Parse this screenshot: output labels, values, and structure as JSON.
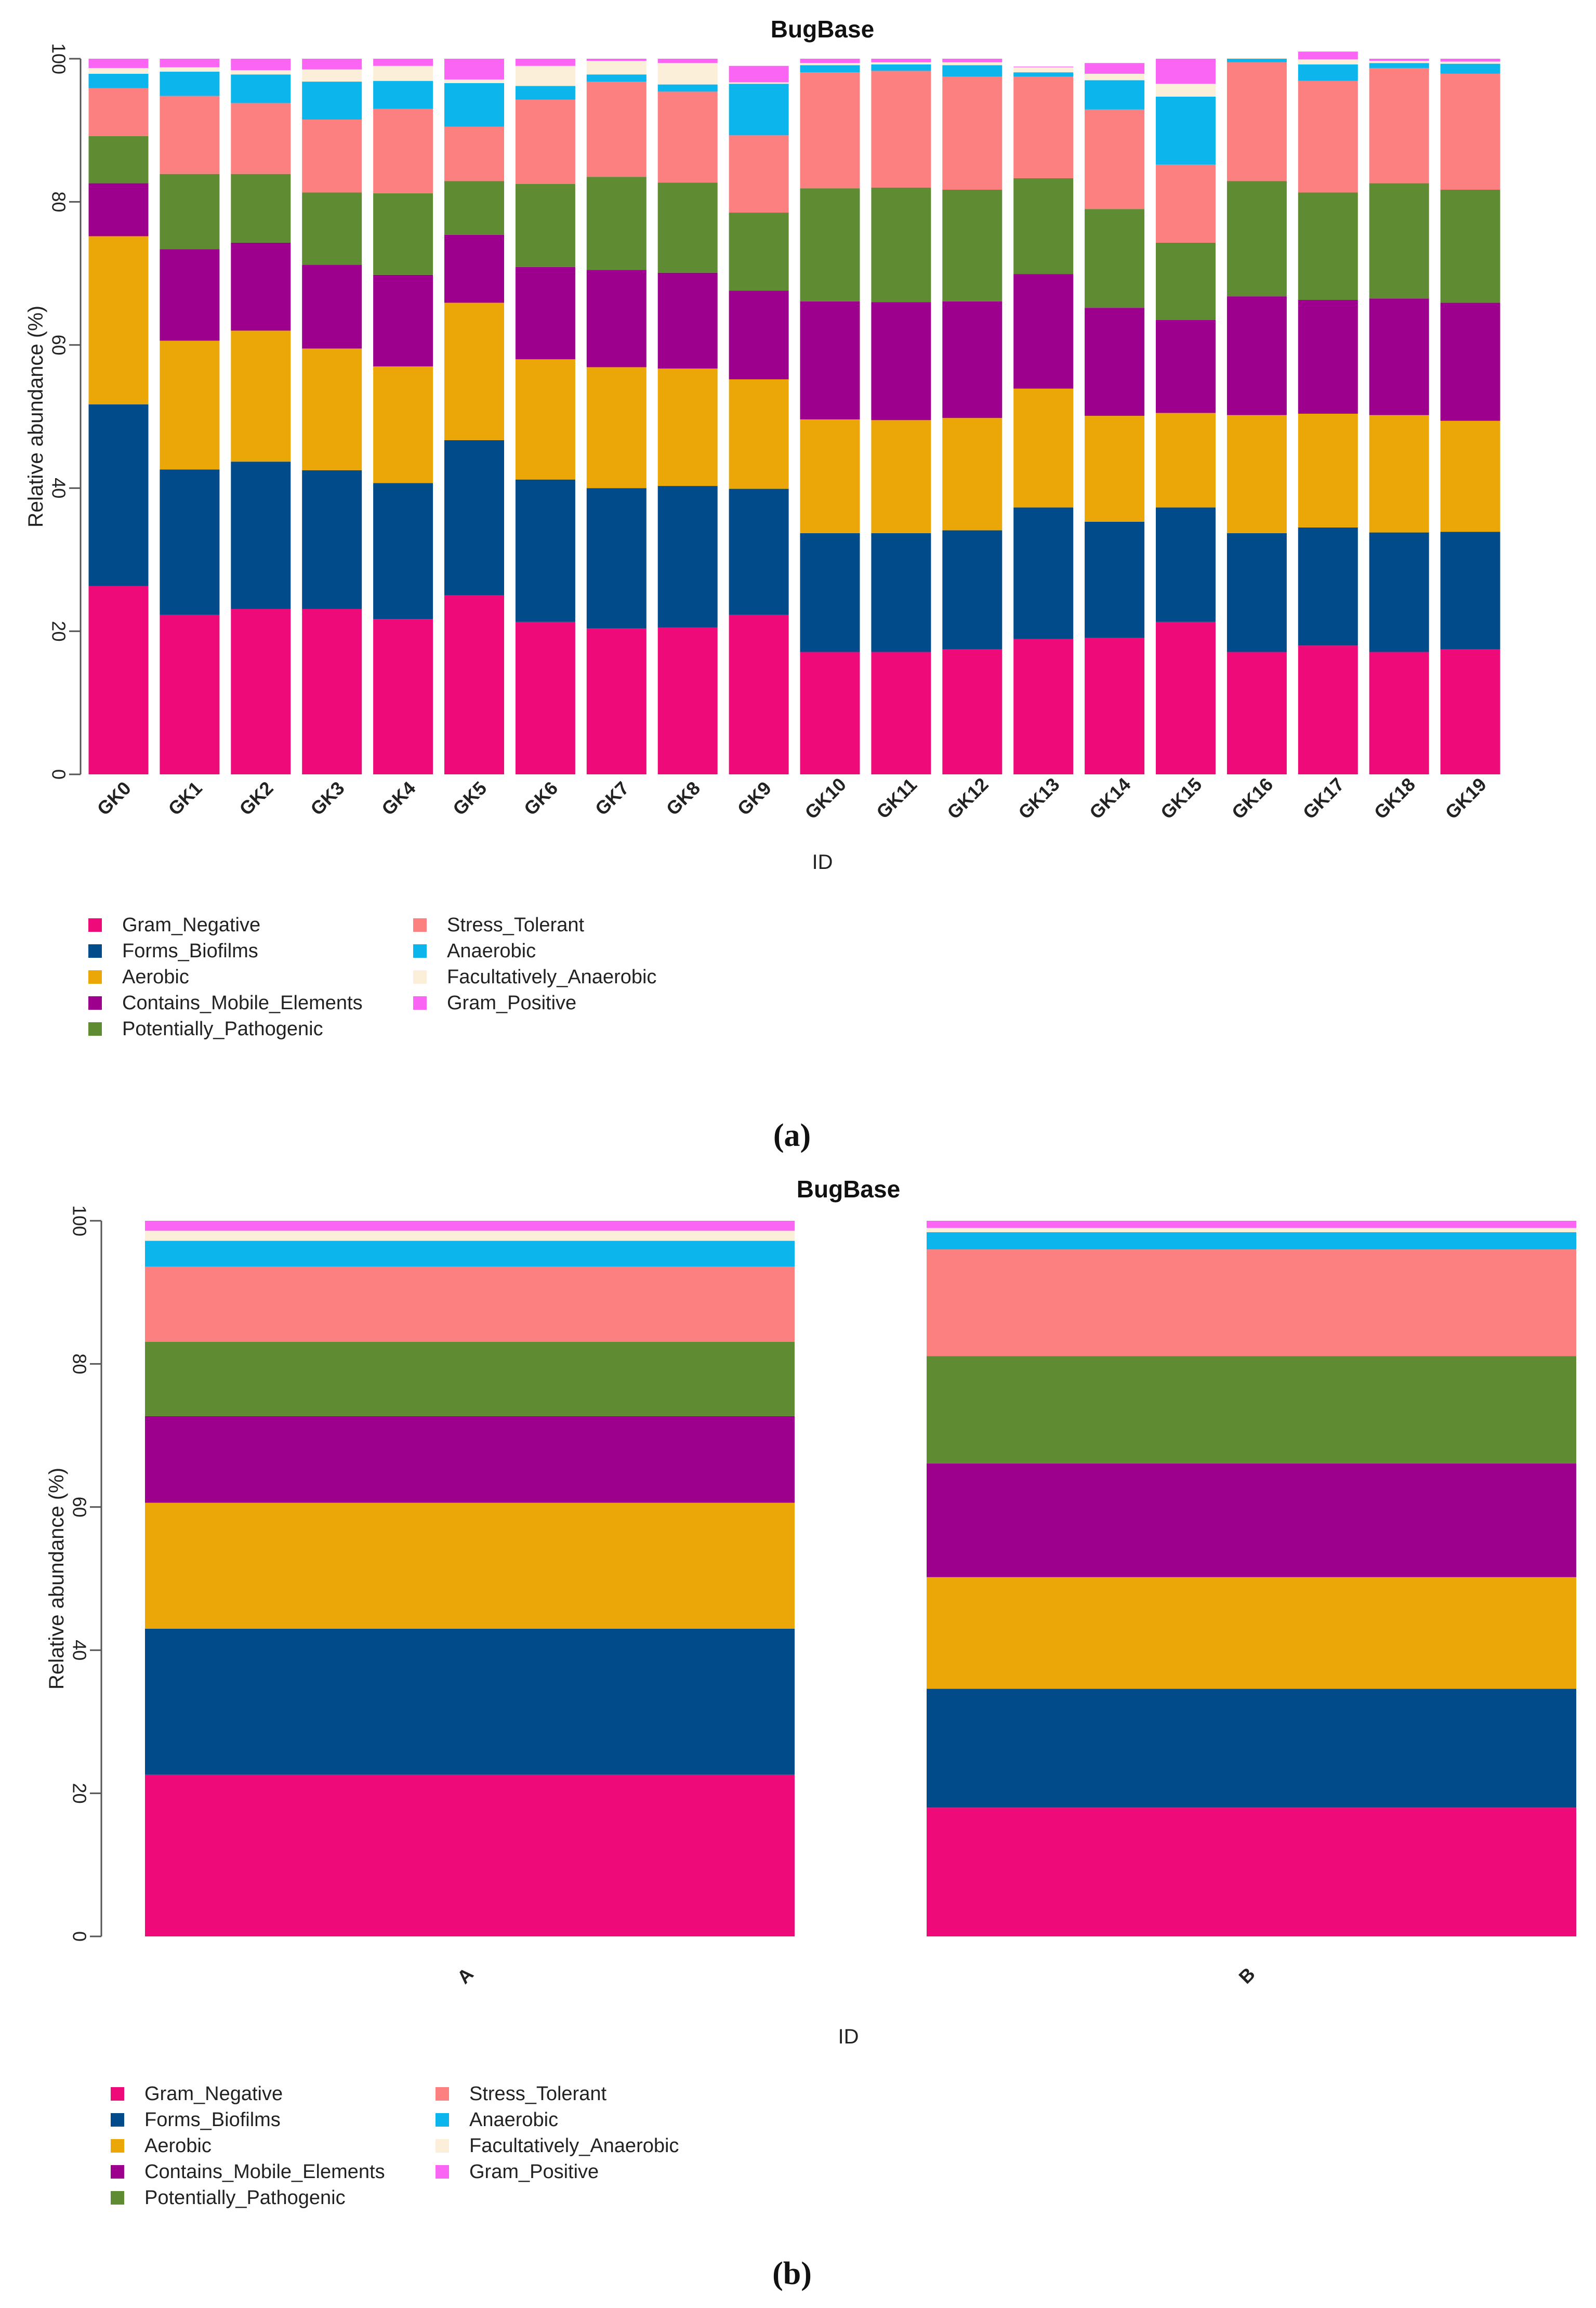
{
  "colors": {
    "Gram_Negative": "#ef0a79",
    "Forms_Biofilms": "#024b8a",
    "Aerobic": "#eba707",
    "Contains_Mobile_Elements": "#9c008c",
    "Potentially_Pathogenic": "#5f8b33",
    "Stress_Tolerant": "#fd8080",
    "Anaerobic": "#0cb5ec",
    "Facultatively_Anaerobic": "#fcefd9",
    "Gram_Positive": "#fb65f3"
  },
  "chart_data": [
    {
      "type": "bar",
      "stacked": true,
      "panel_caption": "(a)",
      "title": "BugBase",
      "xlabel": "ID",
      "ylabel": "Relative abundance (%)",
      "ylim": [
        0,
        100
      ],
      "yticks": [
        "0",
        "20",
        "40",
        "60",
        "80",
        "100"
      ],
      "legend_position": "bottom-left",
      "categories": [
        "GK0",
        "GK1",
        "GK2",
        "GK3",
        "GK4",
        "GK5",
        "GK6",
        "GK7",
        "GK8",
        "GK9",
        "GK10",
        "GK11",
        "GK12",
        "GK13",
        "GK14",
        "GK15",
        "GK16",
        "GK17",
        "GK18",
        "GK19"
      ],
      "series": [
        {
          "name": "Gram_Negative",
          "values": [
            26.3,
            22.3,
            23.1,
            23.1,
            21.7,
            25.0,
            21.3,
            20.4,
            20.5,
            22.3,
            17.1,
            17.1,
            17.5,
            18.9,
            19.1,
            21.3,
            17.1,
            18.0,
            17.1,
            17.5
          ]
        },
        {
          "name": "Forms_Biofilms",
          "values": [
            25.4,
            20.3,
            20.6,
            19.4,
            19.0,
            21.7,
            19.9,
            19.6,
            19.8,
            17.6,
            16.6,
            16.6,
            16.6,
            18.4,
            16.2,
            16.0,
            16.6,
            16.5,
            16.7,
            16.4
          ]
        },
        {
          "name": "Aerobic",
          "values": [
            23.5,
            18.0,
            18.3,
            17.0,
            16.3,
            19.2,
            16.8,
            16.9,
            16.4,
            15.3,
            15.9,
            15.8,
            15.7,
            16.6,
            14.8,
            13.2,
            16.5,
            15.9,
            16.4,
            15.5
          ]
        },
        {
          "name": "Contains_Mobile_Elements",
          "values": [
            7.4,
            12.8,
            12.3,
            11.7,
            12.8,
            9.5,
            12.9,
            13.6,
            13.4,
            12.4,
            16.5,
            16.5,
            16.3,
            16.0,
            15.1,
            13.0,
            16.6,
            15.9,
            16.3,
            16.5
          ]
        },
        {
          "name": "Potentially_Pathogenic",
          "values": [
            6.6,
            10.5,
            9.6,
            10.1,
            11.4,
            7.5,
            11.6,
            13.0,
            12.6,
            10.9,
            15.8,
            16.0,
            15.6,
            13.4,
            13.8,
            10.8,
            16.1,
            15.0,
            16.1,
            15.8
          ]
        },
        {
          "name": "Stress_Tolerant",
          "values": [
            6.7,
            10.9,
            9.9,
            10.2,
            11.8,
            7.6,
            11.8,
            13.3,
            12.7,
            10.8,
            16.2,
            16.3,
            15.8,
            14.2,
            13.9,
            10.9,
            16.6,
            15.6,
            16.1,
            16.2
          ]
        },
        {
          "name": "Anaerobic",
          "values": [
            2.0,
            3.4,
            4.0,
            5.3,
            3.9,
            6.1,
            1.9,
            1.0,
            1.0,
            7.2,
            1.0,
            0.9,
            1.6,
            0.6,
            4.1,
            9.5,
            0.5,
            2.3,
            0.7,
            1.4
          ]
        },
        {
          "name": "Facultatively_Anaerobic",
          "values": [
            0.8,
            0.6,
            0.6,
            1.7,
            2.1,
            0.5,
            2.8,
            1.9,
            3.0,
            0.2,
            0.3,
            0.3,
            0.4,
            0.7,
            0.9,
            1.8,
            0.1,
            0.7,
            0.3,
            0.3
          ]
        },
        {
          "name": "Gram_Positive",
          "values": [
            1.3,
            1.2,
            1.6,
            1.5,
            1.0,
            2.9,
            1.0,
            0.3,
            0.6,
            2.3,
            0.6,
            0.5,
            0.5,
            0.1,
            1.5,
            3.5,
            0.0,
            1.1,
            0.3,
            0.4
          ]
        }
      ],
      "legend": {
        "col1": [
          "Gram_Negative",
          "Forms_Biofilms",
          "Aerobic",
          "Contains_Mobile_Elements",
          "Potentially_Pathogenic"
        ],
        "col2": [
          "Stress_Tolerant",
          "Anaerobic",
          "Facultatively_Anaerobic",
          "Gram_Positive"
        ]
      }
    },
    {
      "type": "bar",
      "stacked": true,
      "panel_caption": "(b)",
      "title": "BugBase",
      "xlabel": "ID",
      "ylabel": "Relative abundance (%)",
      "ylim": [
        0,
        100
      ],
      "yticks": [
        "0",
        "20",
        "40",
        "60",
        "80",
        "100"
      ],
      "legend_position": "bottom-left",
      "categories": [
        "A",
        "B"
      ],
      "series": [
        {
          "name": "Gram_Negative",
          "values": [
            22.6,
            18.0
          ]
        },
        {
          "name": "Forms_Biofilms",
          "values": [
            20.4,
            16.6
          ]
        },
        {
          "name": "Aerobic",
          "values": [
            17.6,
            15.6
          ]
        },
        {
          "name": "Contains_Mobile_Elements",
          "values": [
            12.1,
            15.9
          ]
        },
        {
          "name": "Potentially_Pathogenic",
          "values": [
            10.4,
            15.0
          ]
        },
        {
          "name": "Stress_Tolerant",
          "values": [
            10.5,
            14.9
          ]
        },
        {
          "name": "Anaerobic",
          "values": [
            3.6,
            2.4
          ]
        },
        {
          "name": "Facultatively_Anaerobic",
          "values": [
            1.4,
            0.6
          ]
        },
        {
          "name": "Gram_Positive",
          "values": [
            1.4,
            1.0
          ]
        }
      ],
      "legend": {
        "col1": [
          "Gram_Negative",
          "Forms_Biofilms",
          "Aerobic",
          "Contains_Mobile_Elements",
          "Potentially_Pathogenic"
        ],
        "col2": [
          "Stress_Tolerant",
          "Anaerobic",
          "Facultatively_Anaerobic",
          "Gram_Positive"
        ]
      }
    }
  ]
}
